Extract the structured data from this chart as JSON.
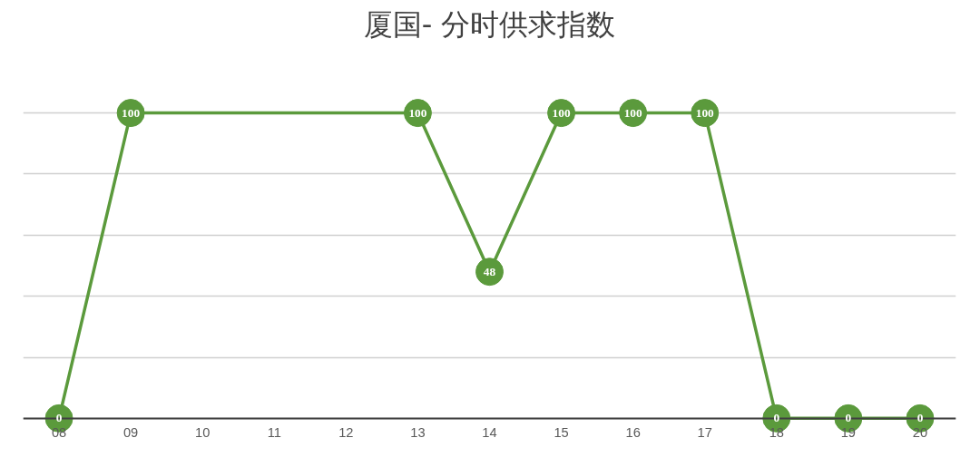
{
  "chart_data": {
    "type": "line",
    "title": "厦国- 分时供求指数",
    "categories": [
      "08",
      "09",
      "10",
      "11",
      "12",
      "13",
      "14",
      "15",
      "16",
      "17",
      "18",
      "19",
      "20"
    ],
    "series": [
      {
        "color": "#5b9a3c",
        "values": [
          0,
          100,
          100,
          100,
          100,
          100,
          48,
          100,
          100,
          100,
          0,
          0,
          0
        ],
        "value_labels": [
          "0",
          "100",
          null,
          null,
          null,
          "100",
          "48",
          "100",
          "100",
          "100",
          "0",
          "0",
          "0"
        ]
      }
    ],
    "yticks": [
      {
        "value": 0,
        "label": null
      },
      {
        "value": 20,
        "label": null
      },
      {
        "value": 40,
        "label": null
      },
      {
        "value": 60,
        "label": null
      },
      {
        "value": 80,
        "label": null
      },
      {
        "value": 100,
        "label": null
      }
    ],
    "tick_labels": "x",
    "grid": "y",
    "marker": "circle"
  }
}
